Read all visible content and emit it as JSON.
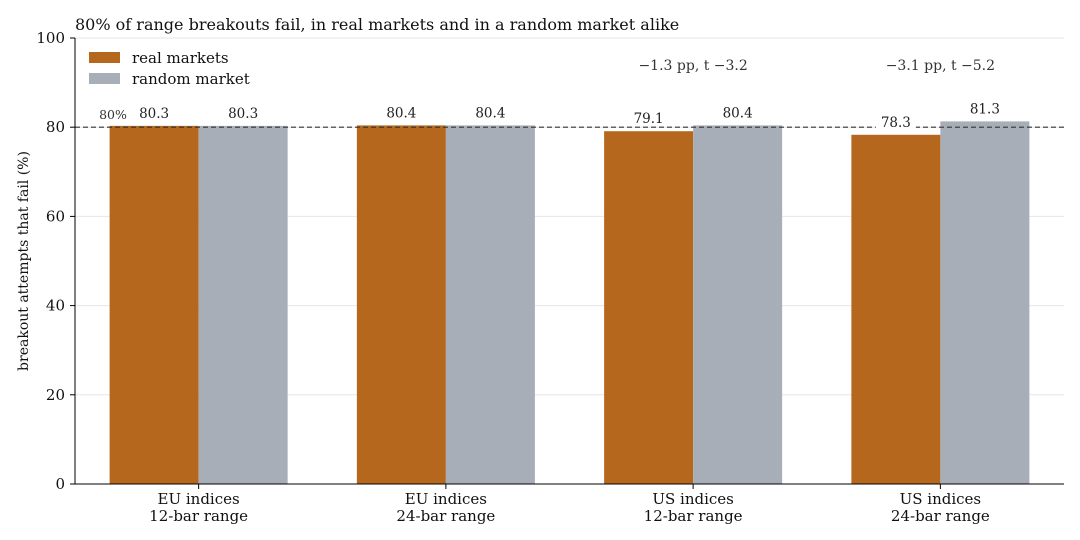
{
  "chart_data": {
    "type": "bar",
    "title": "80% of range breakouts fail, in real markets and in a random market alike",
    "xlabel": "",
    "ylabel": "breakout attempts that fail (%)",
    "ylim": [
      0,
      100
    ],
    "yticks": [
      0,
      20,
      40,
      60,
      80,
      100
    ],
    "grid": true,
    "legend_position": "top-left",
    "categories": [
      [
        "EU indices",
        "12-bar range"
      ],
      [
        "EU indices",
        "24-bar range"
      ],
      [
        "US indices",
        "12-bar range"
      ],
      [
        "US indices",
        "24-bar range"
      ]
    ],
    "series": [
      {
        "name": "real markets",
        "color": "#b5671e",
        "values": [
          80.3,
          80.4,
          79.1,
          78.3
        ],
        "labels": [
          "80.3",
          "80.4",
          "79.1",
          "78.3"
        ]
      },
      {
        "name": "random market",
        "color": "#a8aeb7",
        "values": [
          80.3,
          80.4,
          80.4,
          81.3
        ],
        "labels": [
          "80.3",
          "80.4",
          "80.4",
          "81.3"
        ]
      }
    ],
    "reference_line": {
      "value": 80,
      "label": "80%",
      "style": "dashed"
    },
    "annotations": [
      {
        "category_index": 2,
        "text": "−1.3 pp, t −3.2"
      },
      {
        "category_index": 3,
        "text": "−3.1 pp, t −5.2"
      }
    ]
  }
}
